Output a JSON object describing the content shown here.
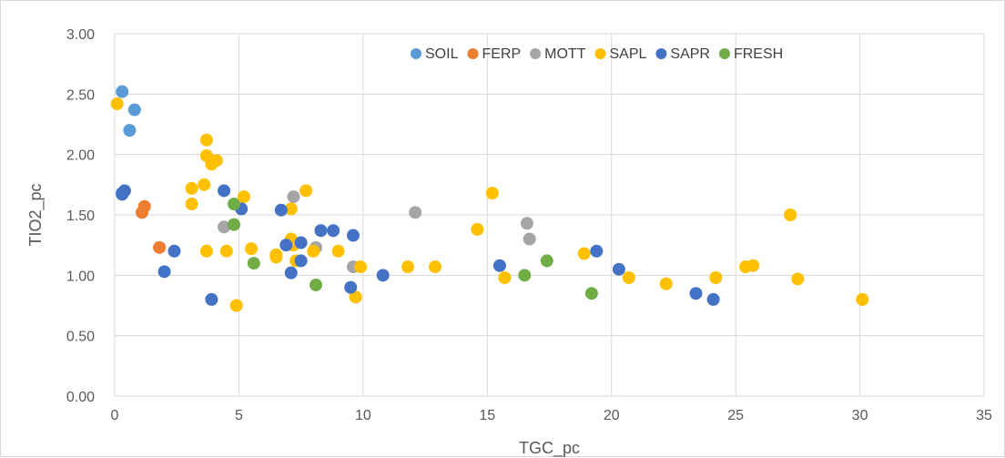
{
  "chart_data": {
    "type": "scatter",
    "title": "",
    "xlabel": "TGC_pc",
    "ylabel": "TIO2_pc",
    "xlim": [
      0,
      35
    ],
    "ylim": [
      0,
      3
    ],
    "x_ticks": [
      "0",
      "5",
      "10",
      "15",
      "20",
      "25",
      "30",
      "35"
    ],
    "y_ticks": [
      "0.00",
      "0.50",
      "1.00",
      "1.50",
      "2.00",
      "2.50",
      "3.00"
    ],
    "grid": true,
    "legend_position": "top",
    "series": [
      {
        "name": "SOIL",
        "color": "#5b9bd5",
        "points": [
          [
            0.3,
            2.52
          ],
          [
            0.8,
            2.37
          ],
          [
            0.6,
            2.2
          ]
        ]
      },
      {
        "name": "FERP",
        "color": "#ed7d31",
        "points": [
          [
            1.2,
            1.57
          ],
          [
            1.1,
            1.52
          ],
          [
            1.8,
            1.23
          ]
        ]
      },
      {
        "name": "MOTT",
        "color": "#a5a5a5",
        "points": [
          [
            7.2,
            1.65
          ],
          [
            4.4,
            1.4
          ],
          [
            8.1,
            1.23
          ],
          [
            9.6,
            1.07
          ],
          [
            12.1,
            1.52
          ],
          [
            16.6,
            1.43
          ],
          [
            16.7,
            1.3
          ]
        ]
      },
      {
        "name": "SAPL",
        "color": "#ffc000",
        "points": [
          [
            0.1,
            2.42
          ],
          [
            3.7,
            2.12
          ],
          [
            3.7,
            1.99
          ],
          [
            4.1,
            1.95
          ],
          [
            3.9,
            1.92
          ],
          [
            3.1,
            1.72
          ],
          [
            3.6,
            1.75
          ],
          [
            3.1,
            1.59
          ],
          [
            5.2,
            1.65
          ],
          [
            7.7,
            1.7
          ],
          [
            3.7,
            1.2
          ],
          [
            4.5,
            1.2
          ],
          [
            5.5,
            1.22
          ],
          [
            6.5,
            1.17
          ],
          [
            6.5,
            1.15
          ],
          [
            7.1,
            1.55
          ],
          [
            7.1,
            1.3
          ],
          [
            7.2,
            1.25
          ],
          [
            7.3,
            1.12
          ],
          [
            8,
            1.2
          ],
          [
            9,
            1.2
          ],
          [
            9.9,
            1.07
          ],
          [
            9.7,
            0.82
          ],
          [
            4.9,
            0.75
          ],
          [
            11.8,
            1.07
          ],
          [
            12.9,
            1.07
          ],
          [
            14.6,
            1.38
          ],
          [
            15.2,
            1.68
          ],
          [
            15.7,
            0.98
          ],
          [
            18.9,
            1.18
          ],
          [
            20.7,
            0.98
          ],
          [
            22.2,
            0.93
          ],
          [
            24.2,
            0.98
          ],
          [
            25.4,
            1.07
          ],
          [
            25.7,
            1.08
          ],
          [
            27.2,
            1.5
          ],
          [
            27.5,
            0.97
          ],
          [
            30.1,
            0.8
          ]
        ]
      },
      {
        "name": "SAPR",
        "color": "#4472c4",
        "points": [
          [
            0.3,
            1.68
          ],
          [
            0.4,
            1.7
          ],
          [
            0.3,
            1.67
          ],
          [
            2.4,
            1.2
          ],
          [
            2,
            1.03
          ],
          [
            3.9,
            0.8
          ],
          [
            4.4,
            1.7
          ],
          [
            5.1,
            1.55
          ],
          [
            6.7,
            1.54
          ],
          [
            6.9,
            1.25
          ],
          [
            7.5,
            1.27
          ],
          [
            7.5,
            1.12
          ],
          [
            7.1,
            1.02
          ],
          [
            8.3,
            1.37
          ],
          [
            8.8,
            1.37
          ],
          [
            9.6,
            1.33
          ],
          [
            9.5,
            0.9
          ],
          [
            10.8,
            1
          ],
          [
            15.5,
            1.08
          ],
          [
            19.4,
            1.2
          ],
          [
            20.3,
            1.05
          ],
          [
            23.4,
            0.85
          ],
          [
            24.1,
            0.8
          ]
        ]
      },
      {
        "name": "FRESH",
        "color": "#70ad47",
        "points": [
          [
            4.8,
            1.59
          ],
          [
            4.8,
            1.42
          ],
          [
            5.6,
            1.1
          ],
          [
            8.1,
            0.92
          ],
          [
            16.5,
            1
          ],
          [
            17.4,
            1.12
          ],
          [
            19.2,
            0.85
          ]
        ]
      }
    ]
  }
}
